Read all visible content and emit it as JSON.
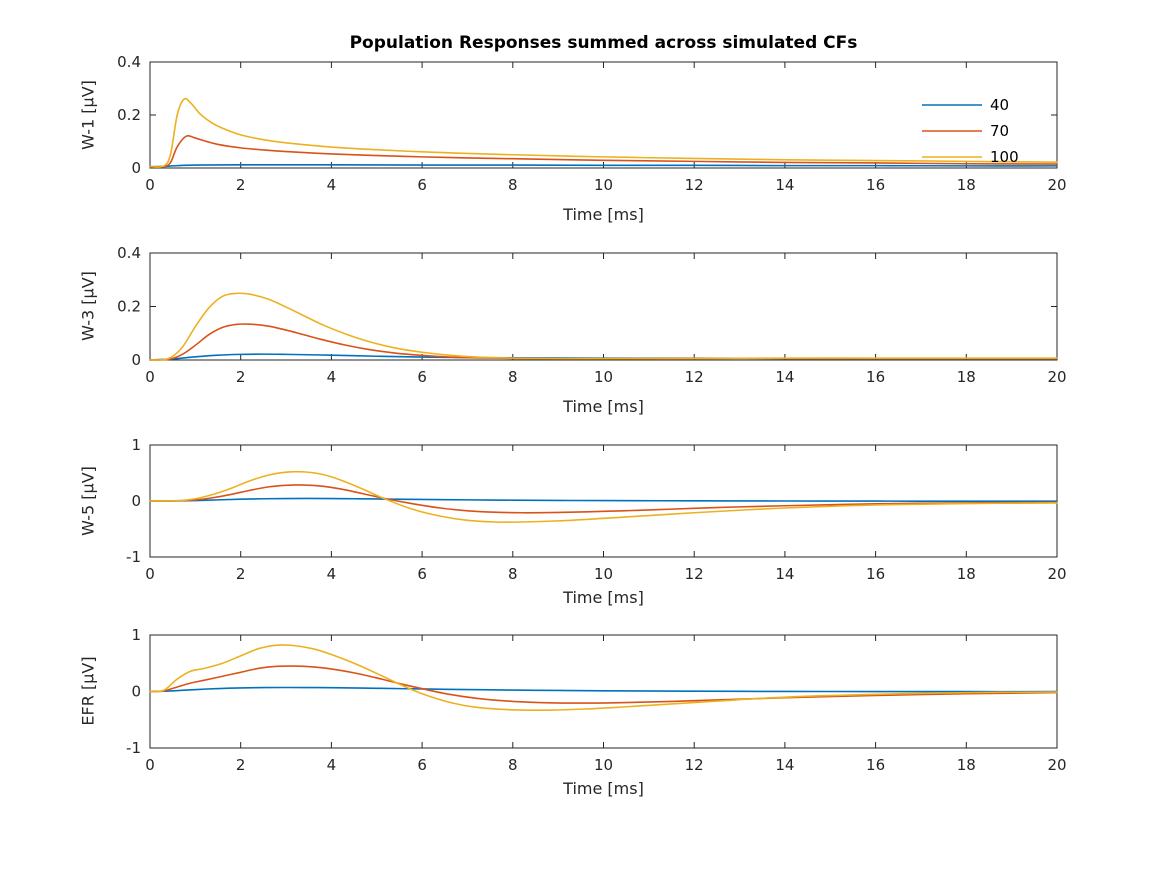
{
  "title": "Population Responses summed across simulated CFs",
  "legend": {
    "position": "top-right-inside-first-subplot",
    "entries": [
      {
        "label": "40",
        "color": "#0072BD"
      },
      {
        "label": "70",
        "color": "#D95319"
      },
      {
        "label": "100",
        "color": "#EDB120"
      }
    ]
  },
  "chart_data": [
    {
      "type": "line",
      "ylabel": "W-1 [μV]",
      "xlabel": "Time [ms]",
      "xlim": [
        0,
        20
      ],
      "ylim": [
        0,
        0.4
      ],
      "xticks": [
        0,
        2,
        4,
        6,
        8,
        10,
        12,
        14,
        16,
        18,
        20
      ],
      "yticks": [
        0,
        0.2,
        0.4
      ],
      "grid": false,
      "series": [
        {
          "name": "40",
          "color": "#0072BD",
          "x": [
            0,
            0.3,
            0.6,
            1,
            2,
            4,
            6,
            8,
            10,
            12,
            14,
            16,
            18,
            20
          ],
          "y": [
            0.005,
            0.006,
            0.009,
            0.011,
            0.012,
            0.012,
            0.011,
            0.011,
            0.01,
            0.01,
            0.009,
            0.009,
            0.008,
            0.008
          ]
        },
        {
          "name": "70",
          "color": "#D95319",
          "x": [
            0,
            0.3,
            0.45,
            0.6,
            0.8,
            1.0,
            1.25,
            1.5,
            2,
            2.5,
            3,
            4,
            5,
            6,
            7,
            8,
            10,
            12,
            14,
            16,
            18,
            20
          ],
          "y": [
            0.005,
            0.006,
            0.02,
            0.08,
            0.12,
            0.113,
            0.1,
            0.089,
            0.076,
            0.068,
            0.062,
            0.053,
            0.047,
            0.042,
            0.038,
            0.035,
            0.029,
            0.025,
            0.021,
            0.019,
            0.016,
            0.015
          ]
        },
        {
          "name": "100",
          "color": "#EDB120",
          "x": [
            0,
            0.3,
            0.45,
            0.6,
            0.75,
            0.9,
            1.1,
            1.35,
            1.6,
            2,
            2.5,
            3,
            4,
            5,
            6,
            7,
            8,
            10,
            12,
            14,
            16,
            18,
            20
          ],
          "y": [
            0.005,
            0.007,
            0.05,
            0.2,
            0.26,
            0.245,
            0.205,
            0.172,
            0.15,
            0.125,
            0.107,
            0.095,
            0.079,
            0.069,
            0.061,
            0.055,
            0.05,
            0.042,
            0.036,
            0.031,
            0.028,
            0.025,
            0.022
          ]
        }
      ]
    },
    {
      "type": "line",
      "ylabel": "W-3 [μV]",
      "xlabel": "Time [ms]",
      "xlim": [
        0,
        20
      ],
      "ylim": [
        0,
        0.4
      ],
      "xticks": [
        0,
        2,
        4,
        6,
        8,
        10,
        12,
        14,
        16,
        18,
        20
      ],
      "yticks": [
        0,
        0.2,
        0.4
      ],
      "grid": false,
      "series": [
        {
          "name": "40",
          "color": "#0072BD",
          "x": [
            0,
            0.5,
            1,
            1.5,
            2,
            2.5,
            3,
            4,
            5,
            6,
            7,
            8,
            10,
            12,
            14,
            16,
            18,
            20
          ],
          "y": [
            0,
            0.004,
            0.012,
            0.018,
            0.021,
            0.022,
            0.021,
            0.018,
            0.014,
            0.011,
            0.009,
            0.008,
            0.007,
            0.007,
            0.006,
            0.006,
            0.006,
            0.006
          ]
        },
        {
          "name": "70",
          "color": "#D95319",
          "x": [
            0,
            0.4,
            0.7,
            1.0,
            1.3,
            1.6,
            1.9,
            2.2,
            2.6,
            3.0,
            3.4,
            3.8,
            4.3,
            4.8,
            5.4,
            6.0,
            6.6,
            7.2,
            8,
            9,
            10,
            12,
            14,
            16,
            18,
            20
          ],
          "y": [
            0,
            0.002,
            0.02,
            0.055,
            0.095,
            0.122,
            0.133,
            0.134,
            0.127,
            0.112,
            0.094,
            0.076,
            0.056,
            0.04,
            0.026,
            0.017,
            0.011,
            0.008,
            0.006,
            0.005,
            0.005,
            0.006,
            0.006,
            0.006,
            0.006,
            0.006
          ]
        },
        {
          "name": "100",
          "color": "#EDB120",
          "x": [
            0,
            0.4,
            0.7,
            1.0,
            1.3,
            1.6,
            1.9,
            2.2,
            2.6,
            3.0,
            3.4,
            3.8,
            4.3,
            4.8,
            5.4,
            6.0,
            6.6,
            7.2,
            8,
            9,
            10,
            12,
            14,
            16,
            18,
            20
          ],
          "y": [
            0,
            0.005,
            0.045,
            0.125,
            0.195,
            0.238,
            0.249,
            0.246,
            0.228,
            0.198,
            0.165,
            0.132,
            0.098,
            0.07,
            0.045,
            0.029,
            0.018,
            0.011,
            0.007,
            0.005,
            0.005,
            0.006,
            0.007,
            0.007,
            0.007,
            0.007
          ]
        }
      ]
    },
    {
      "type": "line",
      "ylabel": "W-5 [μV]",
      "xlabel": "Time [ms]",
      "xlim": [
        0,
        20
      ],
      "ylim": [
        -1,
        1
      ],
      "xticks": [
        0,
        2,
        4,
        6,
        8,
        10,
        12,
        14,
        16,
        18,
        20
      ],
      "yticks": [
        -1,
        0,
        1
      ],
      "grid": false,
      "series": [
        {
          "name": "40",
          "color": "#0072BD",
          "x": [
            0,
            0.5,
            1,
            1.5,
            2,
            2.5,
            3,
            3.5,
            4,
            4.5,
            5,
            6,
            7,
            8,
            9,
            10,
            12,
            14,
            16,
            18,
            20
          ],
          "y": [
            0,
            0.002,
            0.008,
            0.02,
            0.032,
            0.04,
            0.044,
            0.045,
            0.044,
            0.04,
            0.036,
            0.028,
            0.02,
            0.015,
            0.01,
            0.007,
            0.003,
            0,
            -0.002,
            -0.003,
            -0.003
          ]
        },
        {
          "name": "70",
          "color": "#D95319",
          "x": [
            0,
            0.6,
            1.0,
            1.4,
            1.8,
            2.2,
            2.6,
            3.0,
            3.4,
            3.8,
            4.2,
            4.7,
            5.2,
            5.8,
            6.4,
            7.0,
            7.6,
            8.2,
            9.0,
            10,
            11,
            12,
            13,
            14,
            16,
            18,
            20
          ],
          "y": [
            0,
            0.003,
            0.02,
            0.06,
            0.12,
            0.19,
            0.25,
            0.28,
            0.285,
            0.265,
            0.215,
            0.13,
            0.04,
            -0.05,
            -0.125,
            -0.175,
            -0.2,
            -0.21,
            -0.205,
            -0.185,
            -0.16,
            -0.13,
            -0.105,
            -0.085,
            -0.05,
            -0.035,
            -0.025
          ]
        },
        {
          "name": "100",
          "color": "#EDB120",
          "x": [
            0,
            0.6,
            1.0,
            1.4,
            1.8,
            2.2,
            2.6,
            3.0,
            3.4,
            3.8,
            4.2,
            4.7,
            5.2,
            5.8,
            6.4,
            7.0,
            7.6,
            8.2,
            9.0,
            10,
            11,
            12,
            13,
            14,
            16,
            18,
            20
          ],
          "y": [
            0,
            0.005,
            0.04,
            0.12,
            0.23,
            0.36,
            0.46,
            0.515,
            0.52,
            0.475,
            0.375,
            0.21,
            0.03,
            -0.15,
            -0.27,
            -0.345,
            -0.375,
            -0.375,
            -0.355,
            -0.31,
            -0.26,
            -0.21,
            -0.165,
            -0.125,
            -0.07,
            -0.045,
            -0.035
          ]
        }
      ]
    },
    {
      "type": "line",
      "ylabel": "EFR [μV]",
      "xlabel": "Time [ms]",
      "xlim": [
        0,
        20
      ],
      "ylim": [
        -1,
        1
      ],
      "xticks": [
        0,
        2,
        4,
        6,
        8,
        10,
        12,
        14,
        16,
        18,
        20
      ],
      "yticks": [
        -1,
        0,
        1
      ],
      "grid": false,
      "series": [
        {
          "name": "40",
          "color": "#0072BD",
          "x": [
            0,
            0.4,
            0.8,
            1.2,
            1.6,
            2,
            2.5,
            3,
            3.5,
            4,
            5,
            6,
            7,
            8,
            9,
            10,
            12,
            14,
            16,
            18,
            20
          ],
          "y": [
            0,
            0.008,
            0.025,
            0.042,
            0.055,
            0.063,
            0.069,
            0.071,
            0.07,
            0.067,
            0.057,
            0.045,
            0.034,
            0.025,
            0.018,
            0.012,
            0.005,
            0.001,
            -0.001,
            -0.002,
            -0.002
          ]
        },
        {
          "name": "70",
          "color": "#D95319",
          "x": [
            0,
            0.3,
            0.6,
            0.9,
            1.2,
            1.6,
            2.0,
            2.4,
            2.8,
            3.2,
            3.6,
            4.0,
            4.5,
            5.0,
            5.5,
            6.0,
            6.6,
            7.2,
            8.0,
            8.8,
            9.6,
            10.5,
            11.5,
            12.5,
            14,
            16,
            18,
            20
          ],
          "y": [
            0,
            0.01,
            0.08,
            0.15,
            0.2,
            0.27,
            0.34,
            0.41,
            0.445,
            0.45,
            0.435,
            0.4,
            0.33,
            0.24,
            0.14,
            0.05,
            -0.05,
            -0.12,
            -0.175,
            -0.2,
            -0.205,
            -0.195,
            -0.175,
            -0.15,
            -0.11,
            -0.07,
            -0.04,
            -0.02
          ]
        },
        {
          "name": "100",
          "color": "#EDB120",
          "x": [
            0,
            0.3,
            0.6,
            0.9,
            1.2,
            1.6,
            2.0,
            2.4,
            2.8,
            3.2,
            3.6,
            4.0,
            4.5,
            5.0,
            5.5,
            6.0,
            6.6,
            7.2,
            8.0,
            8.8,
            9.6,
            10.5,
            11.5,
            12.5,
            14,
            16,
            18,
            20
          ],
          "y": [
            0,
            0.02,
            0.22,
            0.36,
            0.41,
            0.5,
            0.63,
            0.76,
            0.82,
            0.81,
            0.755,
            0.655,
            0.5,
            0.32,
            0.13,
            -0.04,
            -0.19,
            -0.28,
            -0.325,
            -0.33,
            -0.31,
            -0.27,
            -0.22,
            -0.17,
            -0.1,
            -0.05,
            -0.02,
            -0.01
          ]
        }
      ]
    }
  ],
  "style": {
    "axes_color": "#262626",
    "background": "#ffffff",
    "box": true,
    "ticks_inward": true
  }
}
